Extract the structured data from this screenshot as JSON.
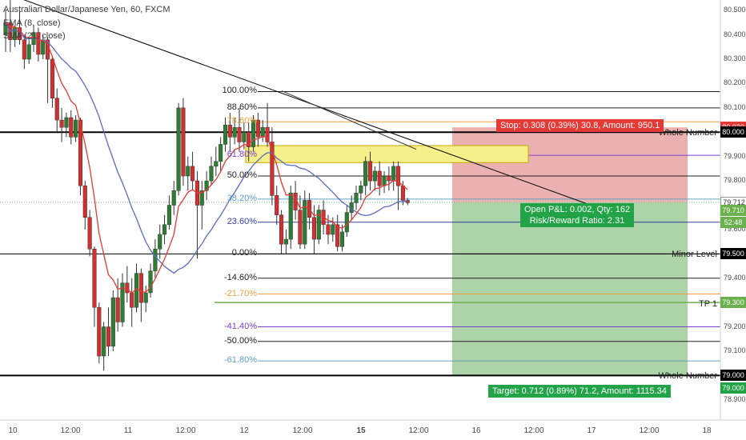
{
  "header": {
    "title": "Australian Dollar/Japanese Yen, 60, FXCM",
    "ema_label": "EMA (8, close)",
    "sma_label": "SMA (21, close)"
  },
  "colors": {
    "up_candle": "#2e7d32",
    "down_candle": "#d32f2f",
    "ema": "#e53935",
    "sma": "#5c6bc0",
    "trendline": "#000000",
    "stop_zone": "#e8a3a3",
    "target_zone": "#9fcb9a",
    "stop_badge": "#e53935",
    "target_badge": "#22a347",
    "highlight_zone": "#f5f08a",
    "fib_orange": "#f0a040",
    "fib_purple": "#7b3fd0",
    "fib_blue": "#5ea0c0",
    "tp_line": "#6ab04c"
  },
  "price_axis": {
    "ticks": [
      "80.500",
      "80.400",
      "80.300",
      "80.200",
      "80.100",
      "80.000",
      "79.900",
      "79.800",
      "79.700",
      "79.600",
      "79.500",
      "79.400",
      "79.300",
      "79.200",
      "79.100",
      "79.000",
      "78.900"
    ],
    "labels": {
      "stop": "80.020",
      "whole_top": "80.000",
      "current": "79.712",
      "current2": "79.710",
      "countdown": "52:48",
      "minor": "79.500",
      "tp1": "79.300",
      "whole_bottom": "79.000",
      "target": "79.000"
    }
  },
  "time_axis": {
    "ticks": [
      "10",
      "12:00",
      "11",
      "12:00",
      "12",
      "12:00",
      "15",
      "12:00",
      "16",
      "12:00",
      "17",
      "12:00",
      "18"
    ]
  },
  "fib_levels": [
    {
      "label": "100.00%",
      "color": "#222222"
    },
    {
      "label": "88.60%",
      "color": "#222222"
    },
    {
      "label": "78.60%",
      "color": "#f0a040"
    },
    {
      "label": "61.80%",
      "color": "#7b3fd0"
    },
    {
      "label": "50.00%",
      "color": "#222222"
    },
    {
      "label": "38.20%",
      "color": "#5ea0c0"
    },
    {
      "label": "23.60%",
      "color": "#3040a0"
    },
    {
      "label": "0.00%",
      "color": "#222222"
    },
    {
      "label": "-14.60%",
      "color": "#222222"
    },
    {
      "label": "-21.70%",
      "color": "#f0a040"
    },
    {
      "label": "-41.40%",
      "color": "#7b3fd0"
    },
    {
      "label": "-50.00%",
      "color": "#222222"
    },
    {
      "label": "-61.80%",
      "color": "#5ea0c0"
    }
  ],
  "levels": {
    "whole_number_top": "Whole Number",
    "minor_level": "Minor Level",
    "tp1": "TP 1",
    "whole_number_bottom": "Whole Number"
  },
  "position": {
    "stop_text": "Stop: 0.308 (0.39%) 30.8, Amount: 950.1",
    "pnl_text": "Open P&L: 0.002, Qty: 162",
    "rr_text": "Risk/Reward Ratio: 2.31",
    "target_text": "Target: 0.712 (0.89%) 71.2, Amount: 1115.34"
  },
  "chart_data": {
    "type": "candlestick",
    "symbol": "Australian Dollar/Japanese Yen",
    "timeframe": "60",
    "source": "FXCM",
    "ylim": [
      78.85,
      80.55
    ],
    "entry_price": 79.712,
    "stop_price": 80.02,
    "target_price": 79.0,
    "candles": [
      {
        "o": 80.4,
        "h": 80.5,
        "c": 80.45,
        "l": 80.33
      },
      {
        "o": 80.45,
        "h": 80.55,
        "c": 80.38,
        "l": 80.33
      },
      {
        "o": 80.38,
        "h": 80.44,
        "c": 80.43,
        "l": 80.35
      },
      {
        "o": 80.43,
        "h": 80.5,
        "c": 80.38,
        "l": 80.36
      },
      {
        "o": 80.38,
        "h": 80.4,
        "c": 80.3,
        "l": 80.26
      },
      {
        "o": 80.3,
        "h": 80.38,
        "c": 80.36,
        "l": 80.28
      },
      {
        "o": 80.36,
        "h": 80.44,
        "c": 80.41,
        "l": 80.33
      },
      {
        "o": 80.41,
        "h": 80.43,
        "c": 80.32,
        "l": 80.29
      },
      {
        "o": 80.32,
        "h": 80.4,
        "c": 80.38,
        "l": 80.3
      },
      {
        "o": 80.38,
        "h": 80.39,
        "c": 80.3,
        "l": 80.12
      },
      {
        "o": 80.3,
        "h": 80.31,
        "c": 80.14,
        "l": 80.1
      },
      {
        "o": 80.14,
        "h": 80.18,
        "c": 80.05,
        "l": 80.0
      },
      {
        "o": 80.05,
        "h": 80.1,
        "c": 80.02,
        "l": 79.96
      },
      {
        "o": 80.02,
        "h": 80.08,
        "c": 80.06,
        "l": 79.98
      },
      {
        "o": 80.06,
        "h": 80.09,
        "c": 79.98,
        "l": 79.95
      },
      {
        "o": 79.98,
        "h": 80.07,
        "c": 80.05,
        "l": 79.96
      },
      {
        "o": 80.05,
        "h": 80.06,
        "c": 79.78,
        "l": 79.74
      },
      {
        "o": 79.78,
        "h": 79.8,
        "c": 79.65,
        "l": 79.6
      },
      {
        "o": 79.65,
        "h": 79.68,
        "c": 79.52,
        "l": 79.49
      },
      {
        "o": 79.52,
        "h": 79.53,
        "c": 79.28,
        "l": 79.2
      },
      {
        "o": 79.28,
        "h": 79.3,
        "c": 79.08,
        "l": 79.05
      },
      {
        "o": 79.08,
        "h": 79.22,
        "c": 79.2,
        "l": 79.02
      },
      {
        "o": 79.2,
        "h": 79.28,
        "c": 79.12,
        "l": 79.08
      },
      {
        "o": 79.12,
        "h": 79.35,
        "c": 79.32,
        "l": 79.1
      },
      {
        "o": 79.32,
        "h": 79.4,
        "c": 79.22,
        "l": 79.18
      },
      {
        "o": 79.22,
        "h": 79.42,
        "c": 79.38,
        "l": 79.2
      },
      {
        "o": 79.38,
        "h": 79.45,
        "c": 79.34,
        "l": 79.3
      },
      {
        "o": 79.34,
        "h": 79.4,
        "c": 79.28,
        "l": 79.2
      },
      {
        "o": 79.28,
        "h": 79.46,
        "c": 79.42,
        "l": 79.26
      },
      {
        "o": 79.42,
        "h": 79.44,
        "c": 79.3,
        "l": 79.22
      },
      {
        "o": 79.3,
        "h": 79.37,
        "c": 79.34,
        "l": 79.26
      },
      {
        "o": 79.34,
        "h": 79.46,
        "c": 79.43,
        "l": 79.32
      },
      {
        "o": 79.43,
        "h": 79.56,
        "c": 79.52,
        "l": 79.4
      },
      {
        "o": 79.52,
        "h": 79.62,
        "c": 79.58,
        "l": 79.48
      },
      {
        "o": 79.58,
        "h": 79.66,
        "c": 79.62,
        "l": 79.54
      },
      {
        "o": 79.62,
        "h": 79.74,
        "c": 79.7,
        "l": 79.6
      },
      {
        "o": 79.7,
        "h": 79.8,
        "c": 79.76,
        "l": 79.66
      },
      {
        "o": 79.76,
        "h": 80.12,
        "c": 80.1,
        "l": 79.74
      },
      {
        "o": 80.1,
        "h": 80.14,
        "c": 79.82,
        "l": 79.78
      },
      {
        "o": 79.82,
        "h": 79.9,
        "c": 79.86,
        "l": 79.76
      },
      {
        "o": 79.86,
        "h": 79.92,
        "c": 79.8,
        "l": 79.76
      },
      {
        "o": 79.8,
        "h": 79.84,
        "c": 79.7,
        "l": 79.48
      },
      {
        "o": 79.7,
        "h": 79.8,
        "c": 79.76,
        "l": 79.6
      },
      {
        "o": 79.76,
        "h": 79.84,
        "c": 79.8,
        "l": 79.72
      },
      {
        "o": 79.8,
        "h": 79.9,
        "c": 79.86,
        "l": 79.78
      },
      {
        "o": 79.86,
        "h": 79.94,
        "c": 79.88,
        "l": 79.82
      },
      {
        "o": 79.88,
        "h": 79.98,
        "c": 79.95,
        "l": 79.84
      },
      {
        "o": 79.95,
        "h": 80.06,
        "c": 80.03,
        "l": 79.92
      },
      {
        "o": 80.03,
        "h": 80.08,
        "c": 79.98,
        "l": 79.92
      },
      {
        "o": 79.98,
        "h": 80.06,
        "c": 80.02,
        "l": 79.95
      },
      {
        "o": 80.02,
        "h": 80.1,
        "c": 79.96,
        "l": 79.92
      },
      {
        "o": 79.96,
        "h": 80.04,
        "c": 80.0,
        "l": 79.93
      },
      {
        "o": 80.0,
        "h": 80.04,
        "c": 79.94,
        "l": 79.88
      },
      {
        "o": 79.94,
        "h": 80.07,
        "c": 80.05,
        "l": 79.92
      },
      {
        "o": 80.05,
        "h": 80.08,
        "c": 79.98,
        "l": 79.94
      },
      {
        "o": 79.98,
        "h": 80.05,
        "c": 80.02,
        "l": 79.96
      },
      {
        "o": 80.02,
        "h": 80.12,
        "c": 79.96,
        "l": 79.94
      },
      {
        "o": 79.96,
        "h": 80.02,
        "c": 79.74,
        "l": 79.7
      },
      {
        "o": 79.74,
        "h": 79.78,
        "c": 79.66,
        "l": 79.62
      },
      {
        "o": 79.66,
        "h": 79.68,
        "c": 79.54,
        "l": 79.5
      },
      {
        "o": 79.54,
        "h": 79.6,
        "c": 79.56,
        "l": 79.5
      },
      {
        "o": 79.56,
        "h": 79.78,
        "c": 79.75,
        "l": 79.52
      },
      {
        "o": 79.75,
        "h": 79.8,
        "c": 79.68,
        "l": 79.64
      },
      {
        "o": 79.68,
        "h": 79.74,
        "c": 79.54,
        "l": 79.52
      },
      {
        "o": 79.54,
        "h": 79.76,
        "c": 79.72,
        "l": 79.52
      },
      {
        "o": 79.72,
        "h": 79.75,
        "c": 79.65,
        "l": 79.6
      },
      {
        "o": 79.65,
        "h": 79.7,
        "c": 79.56,
        "l": 79.5
      },
      {
        "o": 79.56,
        "h": 79.7,
        "c": 79.68,
        "l": 79.54
      },
      {
        "o": 79.68,
        "h": 79.72,
        "c": 79.62,
        "l": 79.58
      },
      {
        "o": 79.62,
        "h": 79.66,
        "c": 79.58,
        "l": 79.54
      },
      {
        "o": 79.58,
        "h": 79.65,
        "c": 79.62,
        "l": 79.55
      },
      {
        "o": 79.62,
        "h": 79.66,
        "c": 79.53,
        "l": 79.51
      },
      {
        "o": 79.53,
        "h": 79.62,
        "c": 79.59,
        "l": 79.51
      },
      {
        "o": 79.59,
        "h": 79.7,
        "c": 79.67,
        "l": 79.57
      },
      {
        "o": 79.67,
        "h": 79.74,
        "c": 79.71,
        "l": 79.64
      },
      {
        "o": 79.71,
        "h": 79.78,
        "c": 79.75,
        "l": 79.68
      },
      {
        "o": 79.75,
        "h": 79.8,
        "c": 79.78,
        "l": 79.72
      },
      {
        "o": 79.78,
        "h": 79.9,
        "c": 79.88,
        "l": 79.74
      },
      {
        "o": 79.88,
        "h": 79.92,
        "c": 79.8,
        "l": 79.76
      },
      {
        "o": 79.8,
        "h": 79.86,
        "c": 79.84,
        "l": 79.76
      },
      {
        "o": 79.84,
        "h": 79.88,
        "c": 79.78,
        "l": 79.74
      },
      {
        "o": 79.78,
        "h": 79.84,
        "c": 79.82,
        "l": 79.75
      },
      {
        "o": 79.82,
        "h": 79.86,
        "c": 79.8,
        "l": 79.76
      },
      {
        "o": 79.8,
        "h": 79.88,
        "c": 79.86,
        "l": 79.76
      },
      {
        "o": 79.86,
        "h": 79.88,
        "c": 79.78,
        "l": 79.68
      },
      {
        "o": 79.78,
        "h": 79.8,
        "c": 79.72,
        "l": 79.7
      },
      {
        "o": 79.72,
        "h": 79.73,
        "c": 79.71,
        "l": 79.7
      }
    ]
  }
}
